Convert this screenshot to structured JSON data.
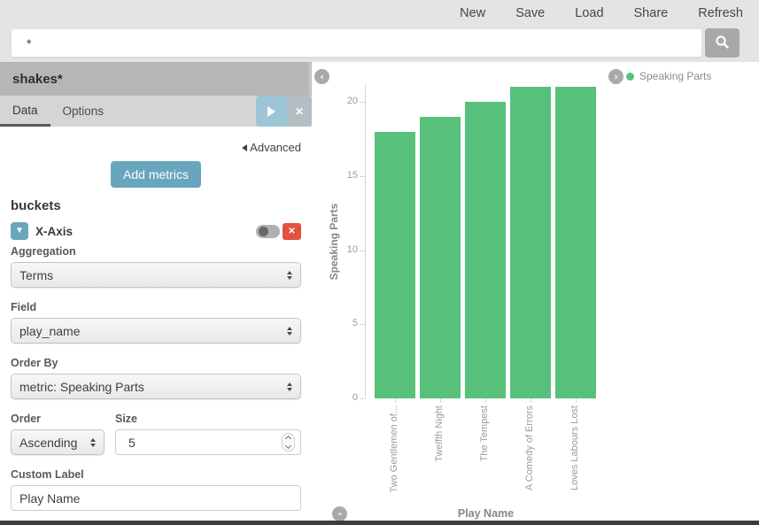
{
  "topbar": {
    "items": [
      {
        "label": "New"
      },
      {
        "label": "Save"
      },
      {
        "label": "Load"
      },
      {
        "label": "Share"
      },
      {
        "label": "Refresh"
      }
    ]
  },
  "search": {
    "value": "*"
  },
  "sidebar": {
    "index_pattern": "shakes*",
    "tabs": {
      "data": "Data",
      "options": "Options"
    },
    "advanced_label": "Advanced",
    "add_metrics_label": "Add metrics",
    "buckets": {
      "heading": "buckets",
      "bucket_type": "X-Axis",
      "aggregation": {
        "label": "Aggregation",
        "value": "Terms"
      },
      "field": {
        "label": "Field",
        "value": "play_name"
      },
      "order_by": {
        "label": "Order By",
        "value": "metric: Speaking Parts"
      },
      "order": {
        "label": "Order",
        "value": "Ascending"
      },
      "size": {
        "label": "Size",
        "value": "5"
      },
      "custom_label": {
        "label": "Custom Label",
        "value": "Play Name"
      }
    }
  },
  "chart": {
    "legend": {
      "label": "Speaking Parts"
    }
  },
  "chart_data": {
    "type": "bar",
    "categories": [
      "Two Gentlemen of...",
      "Twelfth Night",
      "The Tempest",
      "A Comedy of Errors",
      "Loves Labours Lost"
    ],
    "values": [
      18,
      19,
      20,
      21,
      21
    ],
    "series_name": "Speaking Parts",
    "xlabel": "Play Name",
    "ylabel": "Speaking Parts",
    "ylim": [
      0,
      21.2
    ],
    "yticks": [
      0,
      5,
      10,
      15,
      20
    ],
    "bar_color": "#57c17b",
    "legend_position": "top-right",
    "grid": false
  },
  "colors": {
    "primary_button": "#68a6bd",
    "remove_button": "#e15340",
    "bar_green": "#57c17b"
  }
}
